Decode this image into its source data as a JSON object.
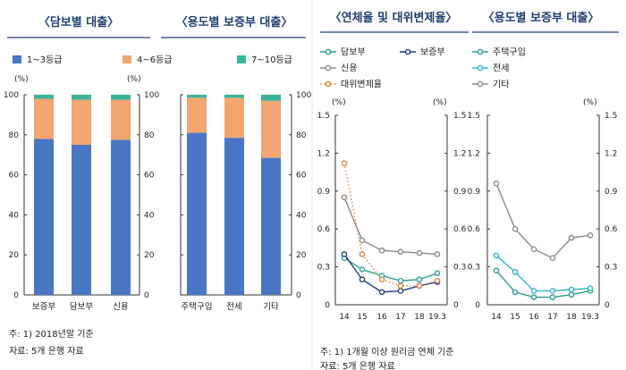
{
  "colors": {
    "grade13": "#4a77c4",
    "grade46": "#f3a66f",
    "grade710": "#3bb39a",
    "collateral": "#2f9f92",
    "deposit": "#233e8c",
    "credit": "#8a8a8a",
    "deputy": "#d8843c",
    "housing": "#2f9f92",
    "jeonse": "#2bb5c9",
    "other": "#8a8a8a"
  },
  "left": {
    "panel1_title": "담보별 대출",
    "panel2_title": "용도별 보증부 대출",
    "legend": [
      "1~3등급",
      "4~6등급",
      "7~10등급"
    ],
    "unit_left": "(%)",
    "unit_right": "(%)",
    "yticks": [
      "0",
      "20",
      "40",
      "60",
      "80",
      "100"
    ],
    "notes": [
      "주: 1) 2018년말 기준",
      "자료: 5개 은행 자료"
    ]
  },
  "right": {
    "panel1_title": "연체율 및 대위변제율",
    "panel2_title": "용도별 보증부 대출",
    "legend1": [
      "담보부",
      "보증부",
      "신용",
      "대위변제율"
    ],
    "legend2": [
      "주택구입",
      "전세",
      "기타"
    ],
    "unit": "(%)",
    "yticks": [
      "0",
      "0.3",
      "0.6",
      "0.9",
      "1.2",
      "1.5"
    ],
    "xticks": [
      "14",
      "15",
      "16",
      "17",
      "18",
      "19.3"
    ],
    "notes": [
      "주: 1) 1개월 이상 원리금 연체 기준",
      "자료: 5개 은행 자료"
    ]
  },
  "chart_data": [
    {
      "type": "bar",
      "stacked": true,
      "title": "담보별 대출",
      "categories": [
        "보증부",
        "담보부",
        "신용"
      ],
      "series": [
        {
          "name": "1~3등급",
          "values": [
            78,
            75,
            77.5
          ]
        },
        {
          "name": "4~6등급",
          "values": [
            20,
            22.5,
            20
          ]
        },
        {
          "name": "7~10등급",
          "values": [
            2,
            2.5,
            2.5
          ]
        }
      ],
      "ylim": [
        0,
        100
      ]
    },
    {
      "type": "bar",
      "stacked": true,
      "title": "용도별 보증부 대출",
      "categories": [
        "주택구입",
        "전세",
        "기타"
      ],
      "series": [
        {
          "name": "1~3등급",
          "values": [
            81,
            78.5,
            68.5
          ]
        },
        {
          "name": "4~6등급",
          "values": [
            17.5,
            20,
            28.5
          ]
        },
        {
          "name": "7~10등급",
          "values": [
            1.5,
            1.5,
            3
          ]
        }
      ],
      "ylim": [
        0,
        100
      ]
    },
    {
      "type": "line",
      "title": "연체율 및 대위변제율",
      "x": [
        "14",
        "15",
        "16",
        "17",
        "18",
        "19.3"
      ],
      "series": [
        {
          "name": "담보부",
          "values": [
            0.37,
            0.28,
            0.23,
            0.19,
            0.2,
            0.25
          ]
        },
        {
          "name": "보증부",
          "values": [
            0.4,
            0.2,
            0.1,
            0.11,
            0.15,
            0.18
          ]
        },
        {
          "name": "신용",
          "values": [
            0.85,
            0.51,
            0.43,
            0.42,
            0.41,
            0.4
          ]
        },
        {
          "name": "대위변제율",
          "values": [
            1.12,
            0.4,
            0.2,
            0.15,
            0.15,
            0.19
          ]
        }
      ],
      "ylim": [
        0,
        1.5
      ]
    },
    {
      "type": "line",
      "title": "용도별 보증부 대출",
      "x": [
        "14",
        "15",
        "16",
        "17",
        "18",
        "19.3"
      ],
      "series": [
        {
          "name": "주택구입",
          "values": [
            0.27,
            0.1,
            0.06,
            0.06,
            0.08,
            0.11
          ]
        },
        {
          "name": "전세",
          "values": [
            0.39,
            0.26,
            0.11,
            0.11,
            0.12,
            0.13
          ]
        },
        {
          "name": "기타",
          "values": [
            0.96,
            0.6,
            0.44,
            0.37,
            0.53,
            0.55
          ]
        }
      ],
      "ylim": [
        0,
        1.5
      ]
    }
  ]
}
